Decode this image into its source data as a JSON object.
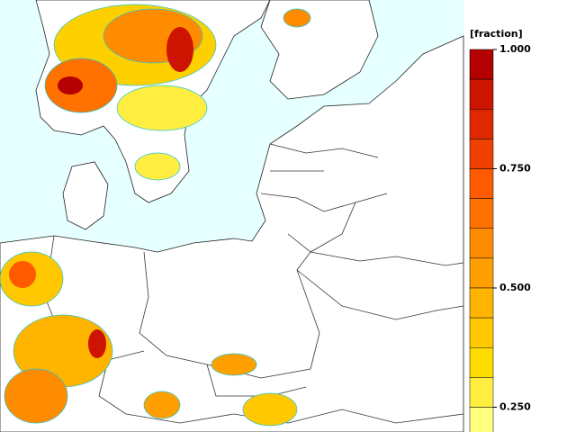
{
  "colorbar": {
    "title": "[fraction]",
    "bounds": [
      1.0,
      0.9375,
      0.875,
      0.8125,
      0.75,
      0.6875,
      0.625,
      0.5625,
      0.5,
      0.4375,
      0.375,
      0.3125,
      0.25,
      0.1875
    ],
    "colors": [
      "#b40000",
      "#cc1400",
      "#e02800",
      "#f04000",
      "#ff5a00",
      "#ff7200",
      "#ff8c00",
      "#ffa000",
      "#ffb400",
      "#ffc800",
      "#ffdc00",
      "#ffee40",
      "#ffff80"
    ],
    "ticks": [
      {
        "value": 1.0,
        "label": "1.000"
      },
      {
        "value": 0.75,
        "label": "0.750"
      },
      {
        "value": 0.5,
        "label": "0.500"
      },
      {
        "value": 0.25,
        "label": "0.250"
      }
    ]
  }
}
